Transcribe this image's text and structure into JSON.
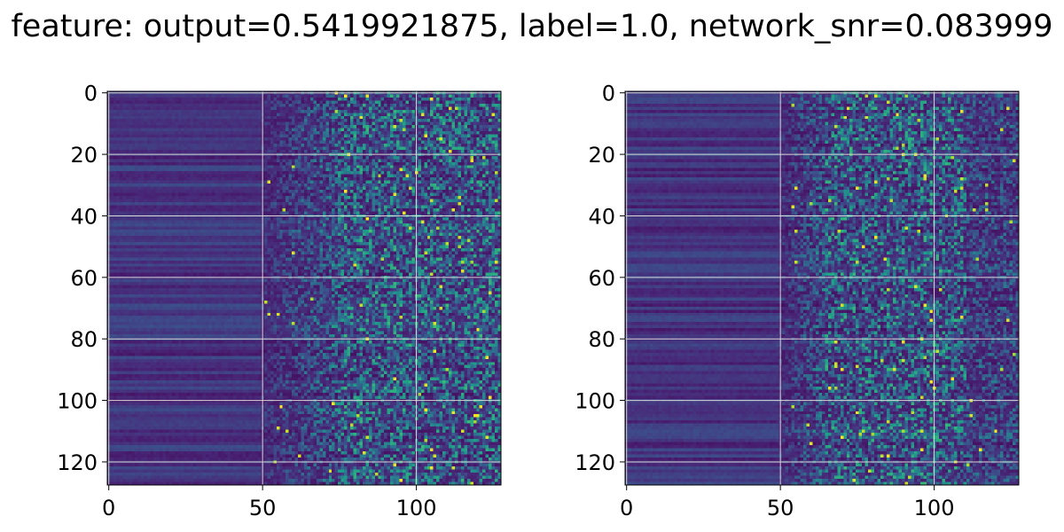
{
  "figure": {
    "title": "feature: output=0.5419921875, label=1.0, network_snr=0.083999"
  },
  "colors": {
    "colormap": "viridis",
    "grid": "#d9d9d9",
    "axis": "#000000",
    "background": "#ffffff"
  },
  "chart_data": [
    {
      "type": "heatmap",
      "title": "",
      "xlabel": "",
      "ylabel": "",
      "rows": 128,
      "cols": 128,
      "xlim": [
        0,
        128
      ],
      "ylim": [
        128,
        0
      ],
      "x_ticks": [
        "0",
        "50",
        "100"
      ],
      "y_ticks": [
        "0",
        "20",
        "40",
        "60",
        "80",
        "100",
        "120"
      ],
      "grid": true,
      "colormap": "viridis",
      "noise_onset_column": 50,
      "dense_region_columns": [
        75,
        128
      ]
    },
    {
      "type": "heatmap",
      "title": "",
      "xlabel": "",
      "ylabel": "",
      "rows": 128,
      "cols": 128,
      "xlim": [
        0,
        128
      ],
      "ylim": [
        128,
        0
      ],
      "x_ticks": [
        "0",
        "50",
        "100"
      ],
      "y_ticks": [
        "0",
        "20",
        "40",
        "60",
        "80",
        "100",
        "120"
      ],
      "grid": true,
      "colormap": "viridis",
      "noise_onset_column": 50,
      "dense_region_columns": [
        65,
        110
      ]
    }
  ]
}
